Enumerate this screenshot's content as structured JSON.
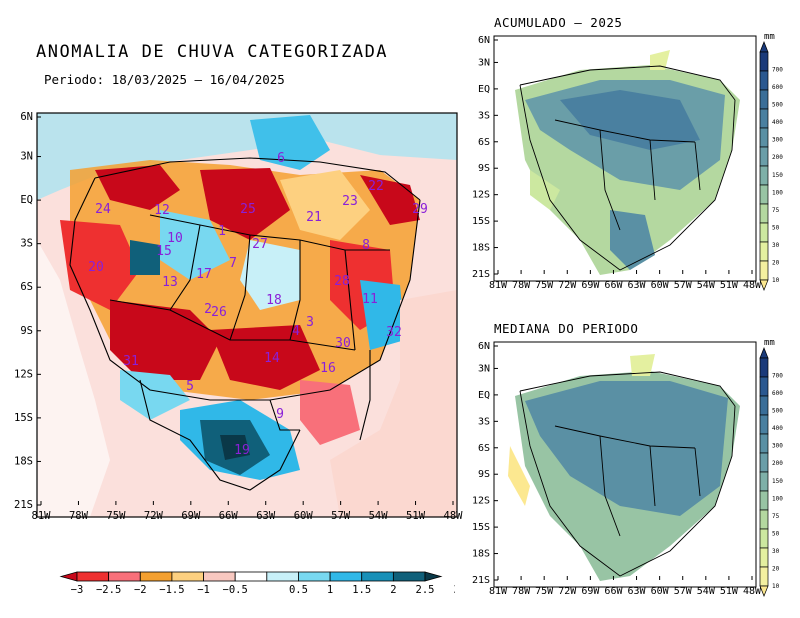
{
  "main_map": {
    "title": "ANOMALIA DE CHUVA CATEGORIZADA",
    "period": "Periodo: 18/03/2025 – 16/04/2025",
    "y_ticks": [
      "6N",
      "3N",
      "EQ",
      "3S",
      "6S",
      "9S",
      "12S",
      "15S",
      "18S",
      "21S"
    ],
    "x_ticks": [
      "81W",
      "78W",
      "75W",
      "72W",
      "69W",
      "66W",
      "63W",
      "60W",
      "57W",
      "54W",
      "51W",
      "48W"
    ],
    "basin_labels": [
      "1",
      "2",
      "3",
      "4",
      "5",
      "6",
      "7",
      "8",
      "9",
      "10",
      "11",
      "12",
      "13",
      "14",
      "15",
      "16",
      "17",
      "18",
      "19",
      "20",
      "21",
      "22",
      "23",
      "24",
      "25",
      "26",
      "27",
      "28",
      "29",
      "30",
      "31",
      "32"
    ],
    "colorbar": {
      "ticks": [
        "−3",
        "−2.5",
        "−2",
        "−1.5",
        "−1",
        "−0.5",
        "0.5",
        "1",
        "1.5",
        "2",
        "2.5",
        "3"
      ],
      "colors": [
        "#c8081a",
        "#ee3030",
        "#f8707a",
        "#f4a030",
        "#fdd080",
        "#f8c8c0",
        "#ffffff",
        "#c8f0f8",
        "#78d8f0",
        "#30b8e8",
        "#1890b8",
        "#10607a",
        "#0a3848"
      ]
    }
  },
  "top_map": {
    "title": "ACUMULADO – 2025",
    "y_ticks": [
      "6N",
      "3N",
      "EQ",
      "3S",
      "6S",
      "9S",
      "12S",
      "15S",
      "18S",
      "21S"
    ],
    "x_ticks": [
      "81W",
      "78W",
      "75W",
      "72W",
      "69W",
      "66W",
      "63W",
      "60W",
      "57W",
      "54W",
      "51W",
      "48W"
    ]
  },
  "bottom_map": {
    "title": "MEDIANA DO PERIODO",
    "y_ticks": [
      "6N",
      "3N",
      "EQ",
      "3S",
      "6S",
      "9S",
      "12S",
      "15S",
      "18S",
      "21S"
    ],
    "x_ticks": [
      "81W",
      "78W",
      "75W",
      "72W",
      "69W",
      "66W",
      "63W",
      "60W",
      "57W",
      "54W",
      "51W",
      "48W"
    ]
  },
  "precip_scale": {
    "unit": "mm",
    "ticks": [
      "700",
      "600",
      "500",
      "400",
      "300",
      "200",
      "150",
      "100",
      "75",
      "50",
      "30",
      "20",
      "10"
    ],
    "colors": [
      "#1a3a7a",
      "#2a5890",
      "#3a6e98",
      "#4a80a0",
      "#5a90a4",
      "#6a9ea8",
      "#7eb0a8",
      "#98c4a4",
      "#b4d8a0",
      "#cce8a0",
      "#e4f0a0",
      "#f4f0a0",
      "#fce890"
    ]
  }
}
